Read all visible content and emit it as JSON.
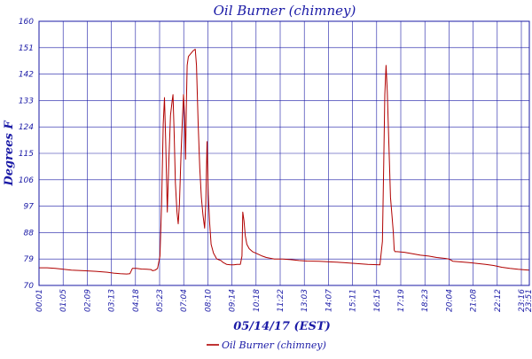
{
  "chart_data": {
    "type": "line",
    "title": "Oil Burner (chimney)",
    "xlabel": "05/14/17 (EST)",
    "ylabel": "Degrees F",
    "ylim": [
      70,
      160
    ],
    "y_ticks": [
      "160",
      "151",
      "142",
      "133",
      "124",
      "115",
      "106",
      "97",
      "88",
      "79",
      "70"
    ],
    "x_ticks": [
      "00:01",
      "01:05",
      "02:09",
      "03:13",
      "04:18",
      "05:23",
      "07:04",
      "08:10",
      "09:14",
      "10:18",
      "11:22",
      "13:03",
      "14:07",
      "15:11",
      "16:15",
      "17:19",
      "18:23",
      "20:04",
      "21:08",
      "22:12",
      "23:16",
      "23:51"
    ],
    "grid": true,
    "legend_position": "bottom",
    "series": [
      {
        "name": "Oil Burner (chimney)",
        "color": "#b00000",
        "points": [
          [
            0,
            76
          ],
          [
            10,
            76
          ],
          [
            20,
            75.8
          ],
          [
            30,
            75.5
          ],
          [
            40,
            75.2
          ],
          [
            55,
            75
          ],
          [
            70,
            74.8
          ],
          [
            84,
            74.5
          ],
          [
            92,
            74.2
          ],
          [
            100,
            74
          ],
          [
            108,
            73.9
          ],
          [
            112,
            74
          ],
          [
            115,
            75.8
          ],
          [
            120,
            75.8
          ],
          [
            126,
            75.6
          ],
          [
            133,
            75.5
          ],
          [
            138,
            75.4
          ],
          [
            140,
            75
          ],
          [
            143,
            75.2
          ],
          [
            146,
            75.8
          ],
          [
            149,
            80
          ],
          [
            151,
            98
          ],
          [
            153,
            125
          ],
          [
            154.5,
            134
          ],
          [
            156,
            120
          ],
          [
            158,
            95
          ],
          [
            160,
            113
          ],
          [
            162,
            128
          ],
          [
            164,
            133
          ],
          [
            165,
            135
          ],
          [
            166.5,
            122
          ],
          [
            168,
            105
          ],
          [
            170,
            95
          ],
          [
            171.5,
            91
          ],
          [
            173,
            98
          ],
          [
            175,
            115
          ],
          [
            176.5,
            126
          ],
          [
            178,
            135
          ],
          [
            179.5,
            127
          ],
          [
            180.5,
            113
          ],
          [
            181.5,
            132
          ],
          [
            182.5,
            145
          ],
          [
            184,
            148
          ],
          [
            187,
            149
          ],
          [
            190,
            150
          ],
          [
            192.5,
            150.5
          ],
          [
            194,
            145
          ],
          [
            196,
            125
          ],
          [
            198,
            110
          ],
          [
            200,
            100
          ],
          [
            202,
            94
          ],
          [
            204,
            89.5
          ],
          [
            205.5,
            98
          ],
          [
            207,
            119
          ],
          [
            208.5,
            101
          ],
          [
            210,
            92
          ],
          [
            212,
            84
          ],
          [
            215,
            81
          ],
          [
            219,
            79
          ],
          [
            224,
            78.5
          ],
          [
            227,
            77.8
          ],
          [
            229,
            77.5
          ],
          [
            231,
            77.2
          ],
          [
            236,
            77
          ],
          [
            240,
            77
          ],
          [
            244,
            77.2
          ],
          [
            248,
            77.2
          ],
          [
            250,
            80
          ],
          [
            251,
            95
          ],
          [
            252.5,
            92
          ],
          [
            254,
            87
          ],
          [
            256,
            84
          ],
          [
            259,
            82.5
          ],
          [
            263,
            81.5
          ],
          [
            267,
            81
          ],
          [
            271,
            80.5
          ],
          [
            275,
            80
          ],
          [
            280,
            79.5
          ],
          [
            290,
            79
          ],
          [
            300,
            79
          ],
          [
            310,
            78.8
          ],
          [
            320,
            78.5
          ],
          [
            330,
            78.3
          ],
          [
            345,
            78.2
          ],
          [
            360,
            78
          ],
          [
            375,
            77.8
          ],
          [
            390,
            77.5
          ],
          [
            405,
            77.2
          ],
          [
            420,
            77
          ],
          [
            423,
            85
          ],
          [
            424.5,
            110
          ],
          [
            426,
            135
          ],
          [
            427.5,
            145
          ],
          [
            429,
            136
          ],
          [
            431,
            118
          ],
          [
            433,
            100
          ],
          [
            435,
            93
          ],
          [
            436.5,
            88
          ],
          [
            437.5,
            82
          ],
          [
            438.5,
            81.5
          ],
          [
            441,
            81.5
          ],
          [
            450,
            81.3
          ],
          [
            460,
            80.8
          ],
          [
            470,
            80.3
          ],
          [
            480,
            80
          ],
          [
            490,
            79.5
          ],
          [
            500,
            79.2
          ],
          [
            505,
            79
          ],
          [
            510,
            78.2
          ],
          [
            520,
            78
          ],
          [
            530,
            77.8
          ],
          [
            540,
            77.5
          ],
          [
            550,
            77.2
          ],
          [
            560,
            76.8
          ],
          [
            570,
            76.2
          ],
          [
            580,
            75.8
          ],
          [
            590,
            75.5
          ],
          [
            600,
            75.3
          ],
          [
            604,
            75.2
          ]
        ]
      }
    ]
  },
  "x_domain": [
    0,
    604
  ]
}
